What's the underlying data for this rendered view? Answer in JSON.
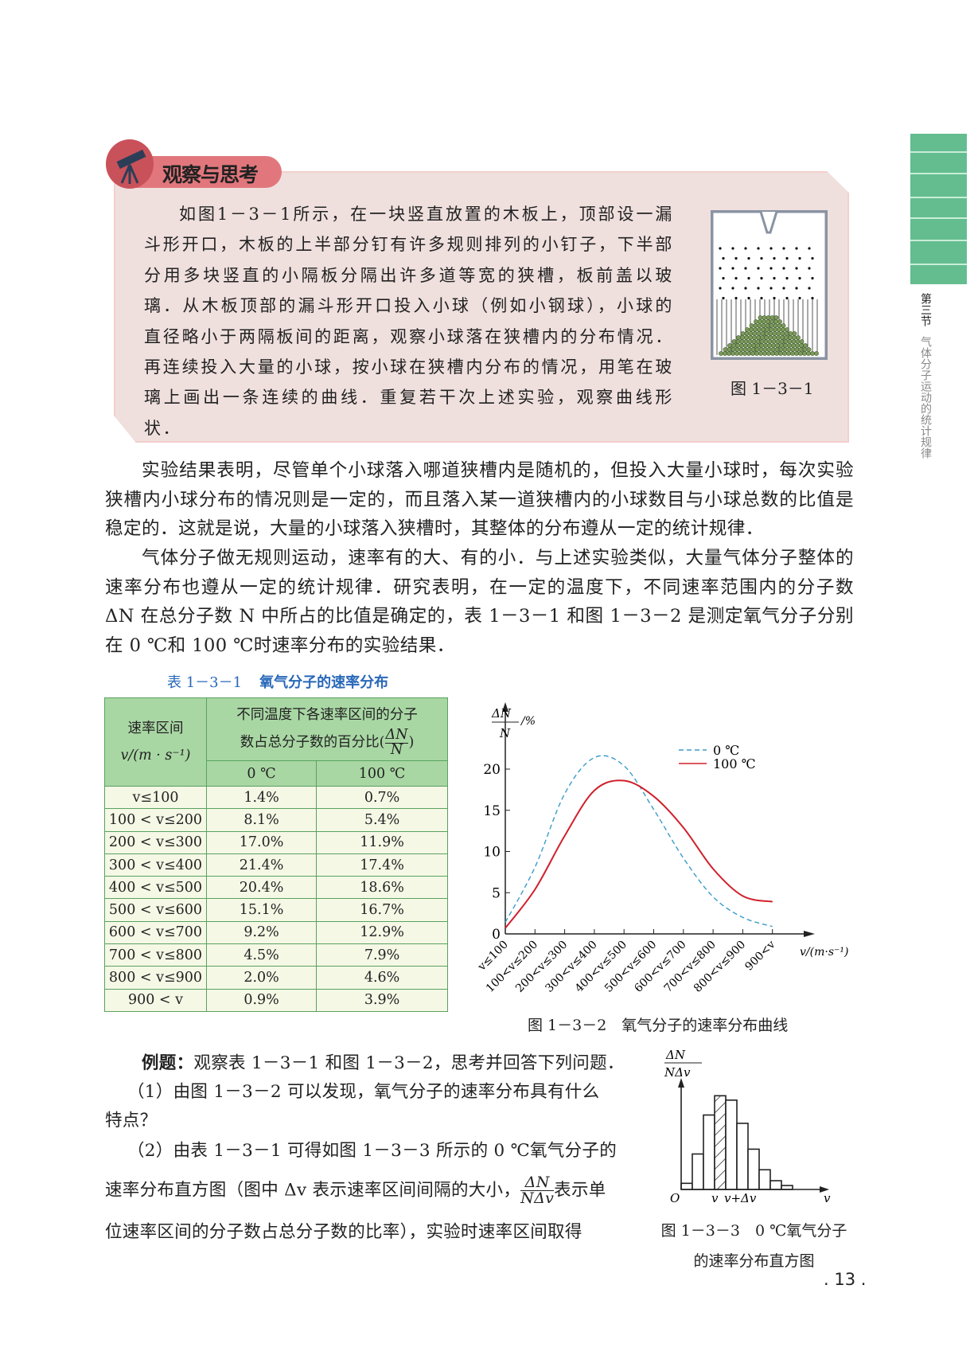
{
  "side_tab": {
    "section": "第三节",
    "title": "气体分子运动的统计规律",
    "color": "#63bd8f"
  },
  "observe": {
    "title": "观察与思考",
    "icon": "telescope-icon",
    "text": "如图1－3－1所示，在一块竖直放置的木板上，顶部设一漏斗形开口，木板的上半部分钉有许多规则排列的小钉子，下半部分用多块竖直的小隔板分隔出许多道等宽的狭槽，板前盖以玻璃．从木板顶部的漏斗形开口投入小球（例如小钢球），小球的直径略小于两隔板间的距离，观察小球落在狭槽内的分布情况．再连续投入大量的小球，按小球在狭槽内分布的情况，用笔在玻璃上画出一条连续的曲线．重复若干次上述实验，观察曲线形状．",
    "figure_caption": "图 1－3－1"
  },
  "body": [
    "实验结果表明，尽管单个小球落入哪道狭槽内是随机的，但投入大量小球时，每次实验狭槽内小球分布的情况则是一定的，而且落入某一道狭槽内的小球数目与小球总数的比值是稳定的．这就是说，大量的小球落入狭槽时，其整体的分布遵从一定的统计规律．",
    "气体分子做无规则运动，速率有的大、有的小．与上述实验类似，大量气体分子整体的速率分布也遵从一定的统计规律．研究表明，在一定的温度下，不同速率范围内的分子数 ΔN 在总分子数 N 中所占的比值是确定的，表 1－3－1 和图 1－3－2 是测定氧气分子分别在 0 ℃和 100 ℃时速率分布的实验结果．"
  ],
  "table": {
    "caption_num": "表 1－3－1",
    "caption": "氧气分子的速率分布",
    "head_col1_l1": "速率区间",
    "head_col1_l2": "v/(m · s⁻¹)",
    "head_group": "不同温度下各速率区间的分子数占总分子数的百分比(",
    "head_group_end": ")",
    "frac_num": "ΔN",
    "frac_den": "N",
    "col_0": "0 ℃",
    "col_100": "100 ℃",
    "rows": [
      [
        "v≤100",
        "1.4%",
        "0.7%"
      ],
      [
        "100 < v≤200",
        "8.1%",
        "5.4%"
      ],
      [
        "200 < v≤300",
        "17.0%",
        "11.9%"
      ],
      [
        "300 < v≤400",
        "21.4%",
        "17.4%"
      ],
      [
        "400 < v≤500",
        "20.4%",
        "18.6%"
      ],
      [
        "500 < v≤600",
        "15.1%",
        "16.7%"
      ],
      [
        "600 < v≤700",
        "9.2%",
        "12.9%"
      ],
      [
        "700 < v≤800",
        "4.5%",
        "7.9%"
      ],
      [
        "800 < v≤900",
        "2.0%",
        "4.6%"
      ],
      [
        "900 < v",
        "0.9%",
        "3.9%"
      ]
    ]
  },
  "chart_data": [
    {
      "type": "line",
      "title": "图 1－3－2　氧气分子的速率分布曲线",
      "ylabel_num": "ΔN",
      "ylabel_den": "N",
      "ylabel_unit": "/%",
      "xlabel": "v/(m·s⁻¹)",
      "categories": [
        "v≤100",
        "100<v≤200",
        "200<v≤300",
        "300<v≤400",
        "400<v≤500",
        "500<v≤600",
        "600<v≤700",
        "700<v≤800",
        "800<v≤900",
        "900<v"
      ],
      "yticks": [
        0,
        5,
        10,
        15,
        20
      ],
      "ylim": [
        0,
        23
      ],
      "legend": "top-right",
      "series": [
        {
          "name": "0 ℃",
          "values": [
            1.4,
            8.1,
            17.0,
            21.4,
            20.4,
            15.1,
            9.2,
            4.5,
            2.0,
            0.9
          ],
          "color": "#3a9cc8",
          "style": "dashed"
        },
        {
          "name": "100 ℃",
          "values": [
            0.7,
            5.4,
            11.9,
            17.4,
            18.6,
            16.7,
            12.9,
            7.9,
            4.6,
            3.9
          ],
          "color": "#d0202c",
          "style": "solid"
        }
      ]
    },
    {
      "type": "bar",
      "title": "图 1－3－3　0 ℃氧气分子的速率分布直方图",
      "ylabel_num": "ΔN",
      "ylabel_den": "NΔv",
      "xlabel": "v",
      "origin": "O",
      "mark_v": "v",
      "mark_v2": "v+Δv",
      "values": [
        1.4,
        8.1,
        17.0,
        21.4,
        20.4,
        15.1,
        9.2,
        4.5,
        2.0,
        0.9
      ],
      "hatched_index": 3
    }
  ],
  "example": {
    "label": "例题：",
    "l1": "观察表 1－3－1 和图 1－3－2，思考并回答下列问题．",
    "q1a": "（1）由图 1－3－2 可以发现，氧气分子的速率分布具有什么",
    "q1b": "特点？",
    "q2a": "（2）由表 1－3－1 可得如图 1－3－3 所示的 0 ℃氧气分子的",
    "q2b": "速率分布直方图（图中 Δv 表示速率区间间隔的大小，",
    "frac_num": "ΔN",
    "frac_den": "NΔv",
    "q2c": "表示单",
    "q2d": "位速率区间的分子数占总分子数的比率），实验时速率区间取得"
  },
  "hist_caption_l1": "图 1－3－3　0 ℃氧气分子",
  "hist_caption_l2": "的速率分布直方图",
  "page_number": ". 13 ."
}
